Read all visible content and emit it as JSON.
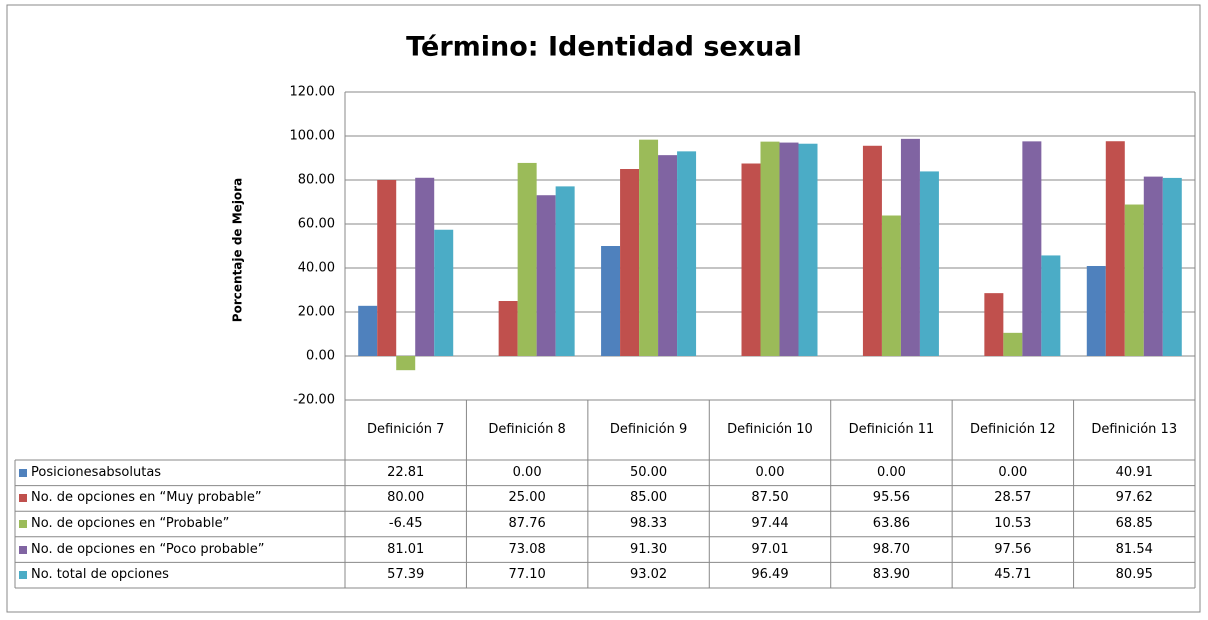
{
  "chart_data": {
    "type": "bar",
    "title": "Término: Identidad sexual",
    "y_axis_label": "Porcentaje de Mejora",
    "categories": [
      "Definición 7",
      "Definición 8",
      "Definición 9",
      "Definición 10",
      "Definición 11",
      "Definición 12",
      "Definición 13"
    ],
    "ylim": [
      -20,
      120
    ],
    "yticks": [
      {
        "value": -20,
        "label": "-20.00"
      },
      {
        "value": 0,
        "label": "0.00"
      },
      {
        "value": 20,
        "label": "20.00"
      },
      {
        "value": 40,
        "label": "40.00"
      },
      {
        "value": 60,
        "label": "60.00"
      },
      {
        "value": 80,
        "label": "80.00"
      },
      {
        "value": 100,
        "label": "100.00"
      },
      {
        "value": 120,
        "label": "120.00"
      }
    ],
    "grid": true,
    "series": [
      {
        "name": "Posicionesabsolutas",
        "color": "#4f81bd",
        "values": [
          22.81,
          0,
          50,
          0,
          0,
          0,
          40.91
        ],
        "value_labels": [
          "22.81",
          "0.00",
          "50.00",
          "0.00",
          "0.00",
          "0.00",
          "40.91"
        ]
      },
      {
        "name": "No. de opciones en “Muy probable”",
        "color": "#c0504d",
        "values": [
          80,
          25,
          85,
          87.5,
          95.56,
          28.57,
          97.62
        ],
        "value_labels": [
          "80.00",
          "25.00",
          "85.00",
          "87.50",
          "95.56",
          "28.57",
          "97.62"
        ]
      },
      {
        "name": "No. de opciones en “Probable”",
        "color": "#9bbb59",
        "values": [
          -6.45,
          87.76,
          98.33,
          97.44,
          63.86,
          10.53,
          68.85
        ],
        "value_labels": [
          "-6.45",
          "87.76",
          "98.33",
          "97.44",
          "63.86",
          "10.53",
          "68.85"
        ]
      },
      {
        "name": "No. de opciones en “Poco probable”",
        "color": "#8064a2",
        "values": [
          81.01,
          73.08,
          91.3,
          97.01,
          98.7,
          97.56,
          81.54
        ],
        "value_labels": [
          "81.01",
          "73.08",
          "91.30",
          "97.01",
          "98.70",
          "97.56",
          "81.54"
        ]
      },
      {
        "name": "No. total de opciones",
        "color": "#4bacc6",
        "values": [
          57.39,
          77.1,
          93.02,
          96.49,
          83.9,
          45.71,
          80.95
        ],
        "value_labels": [
          "57.39",
          "77.10",
          "93.02",
          "96.49",
          "83.90",
          "45.71",
          "80.95"
        ]
      }
    ]
  }
}
